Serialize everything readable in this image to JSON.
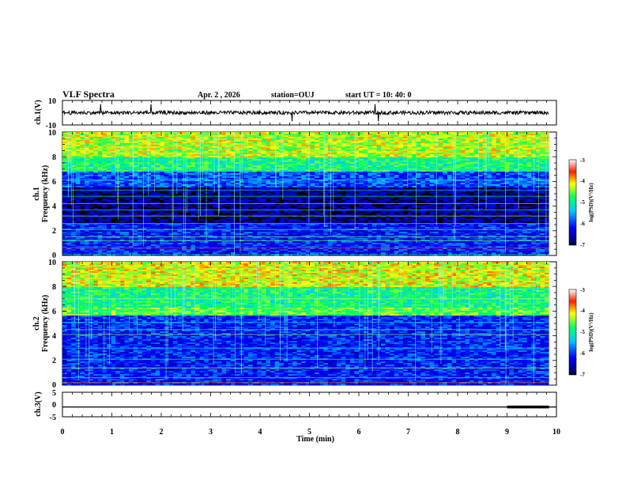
{
  "header": {
    "title": "VLF Spectra",
    "date": "Apr. 2  , 2026",
    "station": "station=OUJ",
    "start": "start  UT  =   10: 40: 0"
  },
  "chart_data": [
    {
      "type": "line",
      "name": "ch1-waveform",
      "ylabel": "ch.1(V)",
      "ylim": [
        -10,
        10
      ],
      "y_ticks": [
        "10",
        "-10"
      ],
      "baseline": 0,
      "amplitude": 1.5,
      "color": "#000000"
    },
    {
      "type": "heatmap",
      "name": "ch1-spectrogram",
      "ylabel": "ch.1\nFrequency  (kHz)",
      "ylabel_parts": [
        "ch.1",
        "Frequency  (kHz)"
      ],
      "ylim": [
        0,
        10
      ],
      "y_ticks": [
        "10",
        "8",
        "6",
        "4",
        "2",
        "0"
      ],
      "xlim": [
        0,
        9.85
      ],
      "colorbar": {
        "label": "log(PSD)(V²/Hz)",
        "ticks": [
          "-3",
          "-4",
          "-5",
          "-6",
          "-7"
        ],
        "range": [
          -7,
          -3
        ]
      }
    },
    {
      "type": "heatmap",
      "name": "ch2-spectrogram",
      "ylabel": "ch.2\nFrequency  (kHz)",
      "ylabel_parts": [
        "ch.2",
        "Frequency  (kHz)"
      ],
      "ylim": [
        0,
        10
      ],
      "y_ticks": [
        "10",
        "8",
        "6",
        "4",
        "2",
        "0"
      ],
      "xlim": [
        0,
        9.85
      ],
      "colorbar": {
        "label": "log(PSD)(V²/Hz)",
        "ticks": [
          "-3",
          "-4",
          "-5",
          "-6",
          "-7"
        ],
        "range": [
          -7,
          -3
        ]
      }
    },
    {
      "type": "line",
      "name": "ch3-voltage",
      "ylabel": "ch.3(V)",
      "ylim": [
        -5,
        5
      ],
      "y_ticks": [
        "5",
        "0",
        "-5"
      ],
      "x": [
        0,
        9.0,
        9.0,
        9.85
      ],
      "y": [
        -1,
        -1,
        -1,
        -1
      ],
      "thick_from": 9.0,
      "color": "#000000"
    }
  ],
  "x_axis": {
    "label": "Time  (min)",
    "range": [
      0,
      10
    ],
    "ticks": [
      "0",
      "1",
      "2",
      "3",
      "4",
      "5",
      "6",
      "7",
      "8",
      "9",
      "10"
    ]
  }
}
